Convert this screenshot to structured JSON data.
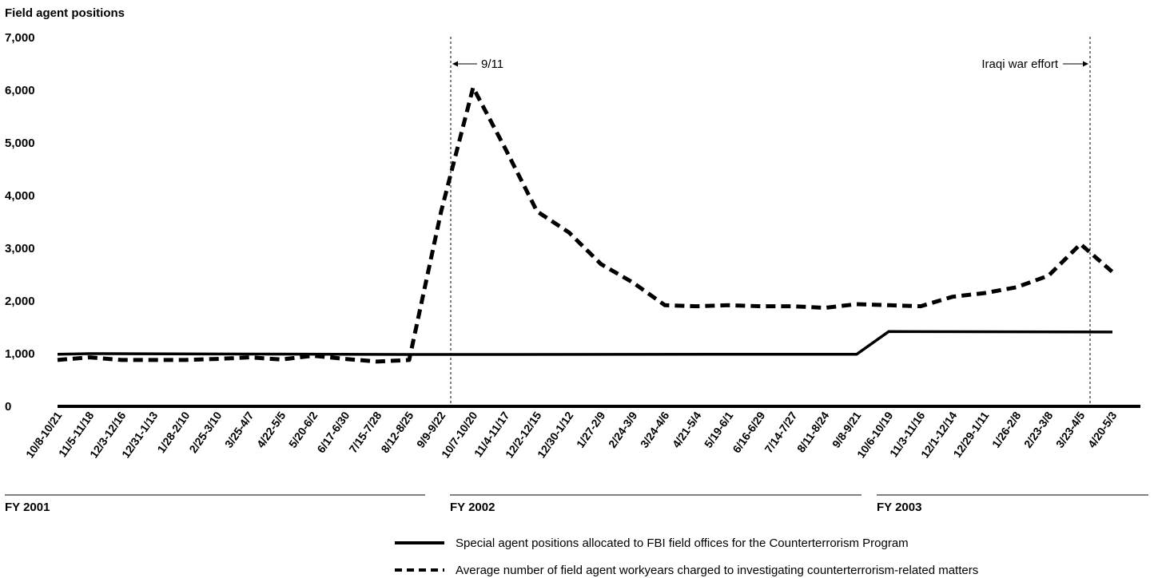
{
  "chart_data": {
    "type": "line",
    "ylabel": "Field agent positions",
    "ylim": [
      0,
      7000
    ],
    "yticks": [
      "0",
      "1,000",
      "2,000",
      "3,000",
      "4,000",
      "5,000",
      "6,000",
      "7,000"
    ],
    "categories": [
      "10/8-10/21",
      "11/5-11/18",
      "12/3-12/16",
      "12/31-1/13",
      "1/28-2/10",
      "2/25-3/10",
      "3/25-4/7",
      "4/22-5/5",
      "5/20-6/2",
      "6/17-6/30",
      "7/15-7/28",
      "8/12-8/25",
      "9/9-9/22",
      "10/7-10/20",
      "11/4-11/17",
      "12/2-12/15",
      "12/30-1/12",
      "1/27-2/9",
      "2/24-3/9",
      "3/24-4/6",
      "4/21-5/4",
      "5/19-6/1",
      "6/16-6/29",
      "7/14-7/27",
      "8/11-8/24",
      "9/8-9/21",
      "10/6-10/19",
      "11/3-11/16",
      "12/1-12/14",
      "12/29-1/11",
      "1/26-2/8",
      "2/23-3/8",
      "3/23-4/5",
      "4/20-5/3"
    ],
    "fiscal_years": [
      "FY 2001",
      "FY 2002",
      "FY 2003"
    ],
    "series": [
      {
        "name": "Special agent positions allocated to FBI field offices for the Counterterrorism Program",
        "style": "solid",
        "x": [
          0,
          1,
          11,
          12,
          25,
          26,
          33
        ],
        "values": [
          990,
          1000,
          985,
          985,
          990,
          1420,
          1410
        ]
      },
      {
        "name": "Average number of field agent workyears charged to investigating counterterrorism-related matters",
        "style": "dashed",
        "x": [
          0,
          1,
          2,
          3,
          4,
          5,
          6,
          7,
          8,
          9,
          10,
          11,
          12,
          13,
          14,
          15,
          16,
          17,
          18,
          19,
          20,
          21,
          22,
          23,
          24,
          25,
          26,
          27,
          28,
          29,
          30,
          31,
          32,
          33
        ],
        "values": [
          880,
          930,
          880,
          880,
          880,
          900,
          930,
          890,
          960,
          900,
          850,
          880,
          3700,
          6050,
          4900,
          3700,
          3300,
          2700,
          2350,
          1920,
          1900,
          1920,
          1900,
          1900,
          1870,
          1940,
          1920,
          1900,
          2080,
          2150,
          2260,
          2480,
          3080,
          2550
        ]
      }
    ],
    "annotations": [
      {
        "text": "9/11",
        "x": 12.3,
        "arrow": "left"
      },
      {
        "text": "Iraqi war effort",
        "x": 32.3,
        "arrow": "right"
      }
    ],
    "grid": false
  }
}
